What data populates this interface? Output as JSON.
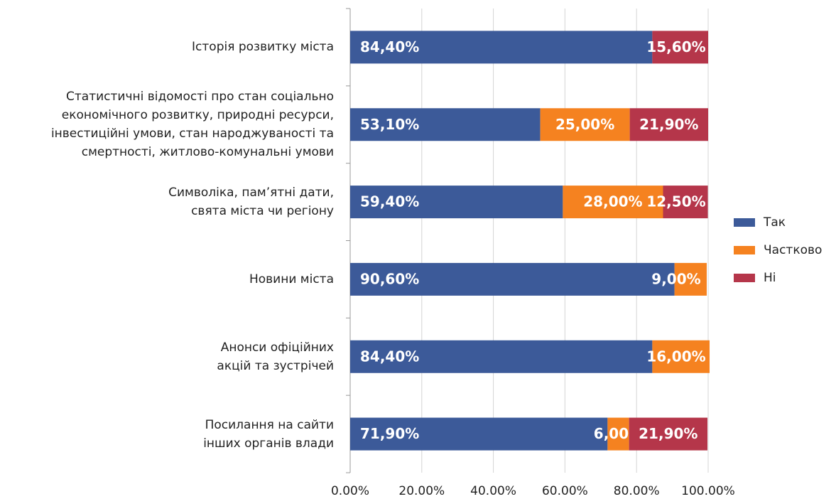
{
  "chart_data": {
    "type": "stacked-bar-horizontal",
    "categories": [
      "Історія розвитку міста",
      "Статистичні відомості про стан соціально\nекономічного розвитку, природні ресурси,\nінвестиційні умови, стан народжуваності та\nсмертності, житлово-комунальні умови",
      "Символіка, пам’ятні дати,\nсвята міста чи регіону",
      "Новини міста",
      "Анонси офіційних\nакцій та зустрічей",
      "Посилання на сайти\nінших органів влади"
    ],
    "series": [
      {
        "name": "Так",
        "color": "#3c5a99",
        "values": [
          84.4,
          53.1,
          59.4,
          90.6,
          84.4,
          71.9
        ],
        "value_labels": [
          "84,40%",
          "53,10%",
          "59,40%",
          "90,60%",
          "84,40%",
          "71,90%"
        ]
      },
      {
        "name": "Частково",
        "color": "#f58220",
        "values": [
          null,
          25.0,
          28.0,
          9.0,
          16.0,
          6.0
        ],
        "value_labels": [
          null,
          "25,00%",
          "28,00%",
          "9,00%",
          "16,00%",
          "6,00%"
        ]
      },
      {
        "name": "Ні",
        "color": "#b5364a",
        "values": [
          15.6,
          21.9,
          12.5,
          null,
          null,
          21.9
        ],
        "value_labels": [
          "15,60%",
          "21,90%",
          "12,50%",
          null,
          null,
          "21,90%"
        ]
      }
    ],
    "xlim": [
      0,
      100
    ],
    "xticks": [
      {
        "value": 0,
        "label": "0.00%"
      },
      {
        "value": 20,
        "label": "20.00%"
      },
      {
        "value": 40,
        "label": "40.00%"
      },
      {
        "value": 60,
        "label": "60.00%"
      },
      {
        "value": 80,
        "label": "80.00%"
      },
      {
        "value": 100,
        "label": "100.00%"
      }
    ],
    "grid": true,
    "legend": "right"
  }
}
